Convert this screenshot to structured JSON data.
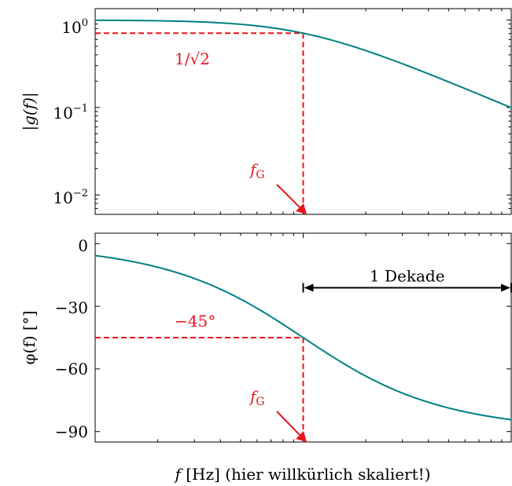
{
  "chart_data": [
    {
      "type": "line",
      "ylabel": "|g(f)|",
      "yscale": "log",
      "ylim": [
        0.006,
        1.35
      ],
      "xscale": "log",
      "xlim": [
        0.1,
        10
      ],
      "y_ticks": [
        {
          "base": "10",
          "exp": "0",
          "value": 1
        },
        {
          "base": "10",
          "exp": "−1",
          "value": 0.1
        },
        {
          "base": "10",
          "exp": "−2",
          "value": 0.01
        }
      ],
      "series": [
        {
          "color": "#008080",
          "formula": "1/sqrt(1+(f/fG)^2)"
        }
      ],
      "annotations": {
        "level_label": "1/√2",
        "level_value": 0.7071,
        "cutoff_label": "f",
        "cutoff_sub": "G",
        "cutoff_x": 1
      }
    },
    {
      "type": "line",
      "ylabel": "φ(f) [°]",
      "ylim": [
        -95,
        5
      ],
      "xscale": "log",
      "xlim": [
        0.1,
        10
      ],
      "y_ticks": [
        0,
        -30,
        -60,
        -90
      ],
      "series": [
        {
          "color": "#008080",
          "formula": "-atan(f/fG) in degrees"
        }
      ],
      "annotations": {
        "level_label": "−45°",
        "level_value": -45,
        "cutoff_label": "f",
        "cutoff_sub": "G",
        "cutoff_x": 1,
        "decade_label": "1 Dekade",
        "decade_from": 1,
        "decade_to": 10,
        "decade_y": -20
      }
    }
  ],
  "xlabel": {
    "var": "f",
    "unit": " [Hz] (hier willkürlich skaliert!)"
  },
  "colors": {
    "curve": "#008080",
    "annotation": "#e8141b",
    "axis": "#000000"
  }
}
